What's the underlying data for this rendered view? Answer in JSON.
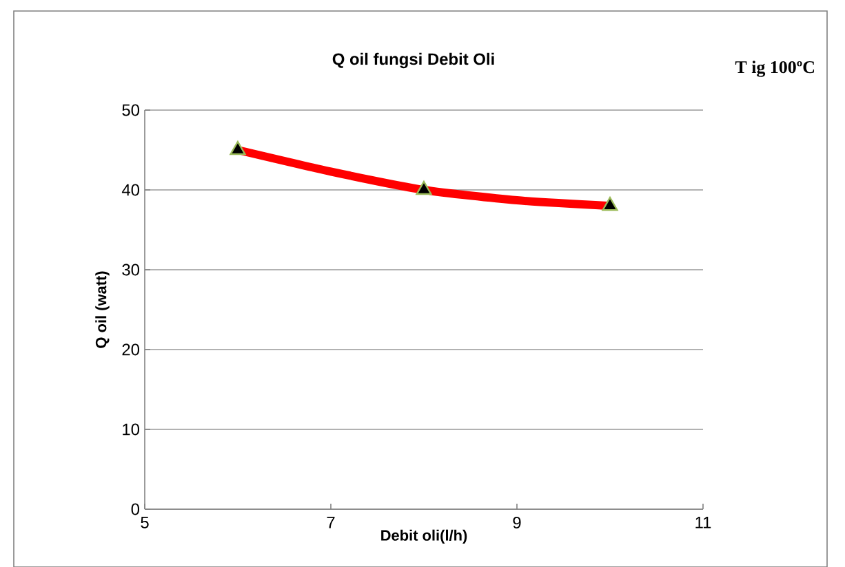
{
  "chart_data": {
    "type": "scatter",
    "title": "Q oil fungsi Debit Oli",
    "xlabel": "Debit  oli(l/h)",
    "ylabel": "Q oil (watt)",
    "annotations": [
      "T ig 100ºC"
    ],
    "xlim": [
      5,
      11
    ],
    "xticks": [
      5,
      7,
      9,
      11
    ],
    "ylim": [
      0,
      50
    ],
    "yticks": [
      0,
      10,
      20,
      30,
      40,
      50
    ],
    "grid": "y",
    "series": [
      {
        "type": "line",
        "color": "#ff0000",
        "marker": "none",
        "x": [
          6,
          7,
          8,
          9,
          10
        ],
        "values": [
          45,
          42.3,
          40,
          38.7,
          38
        ]
      },
      {
        "color": "#000000",
        "marker": "triangle",
        "x": [
          6,
          8,
          10
        ],
        "values": [
          45,
          40,
          38
        ]
      }
    ]
  }
}
